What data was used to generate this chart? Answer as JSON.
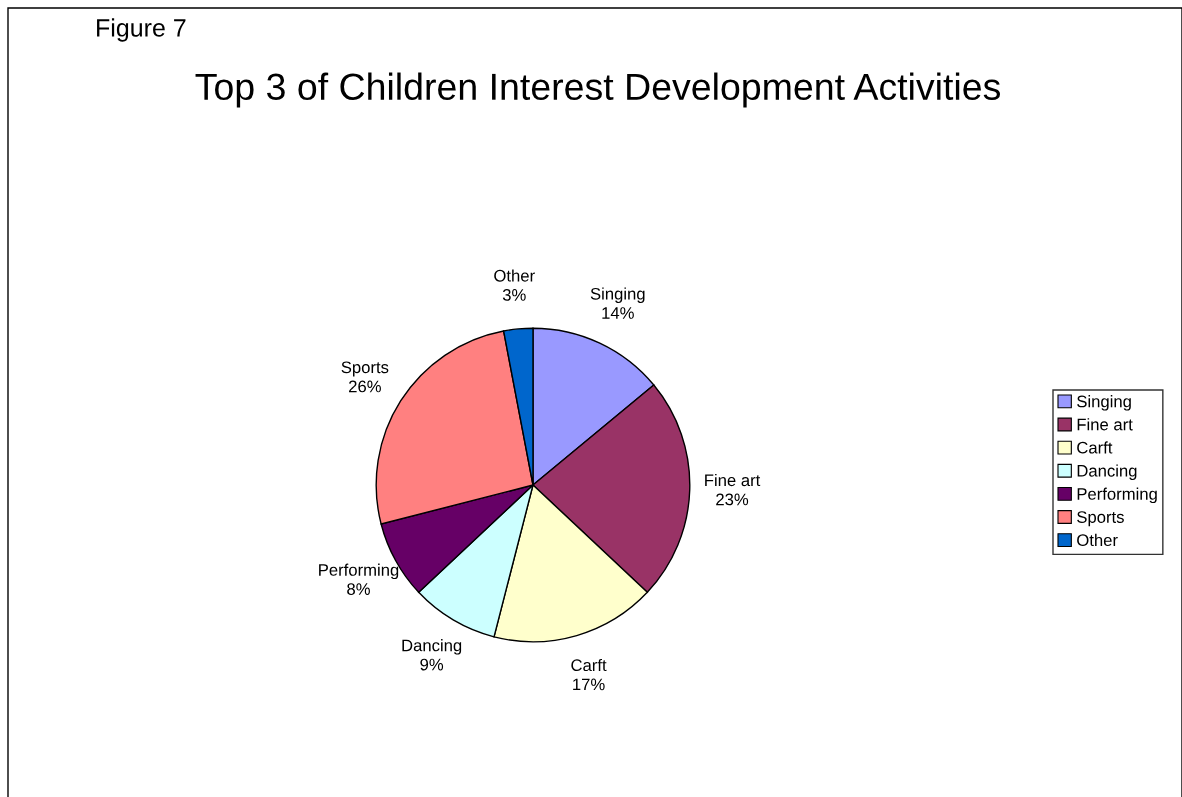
{
  "chart_data": {
    "type": "pie",
    "title": "Top 3 of Children Interest Development Activities",
    "annotations": [
      "Figure 7"
    ],
    "categories": [
      "Singing",
      "Fine art",
      "Carft",
      "Dancing",
      "Performing",
      "Sports",
      "Other"
    ],
    "values": [
      14,
      23,
      17,
      9,
      8,
      26,
      3
    ],
    "value_labels": [
      "14%",
      "23%",
      "17%",
      "9%",
      "8%",
      "26%",
      "3%"
    ],
    "colors": [
      "#9999ff",
      "#993366",
      "#ffffcc",
      "#ccffff",
      "#660066",
      "#ff8080",
      "#0066cc"
    ],
    "legend": "right"
  }
}
